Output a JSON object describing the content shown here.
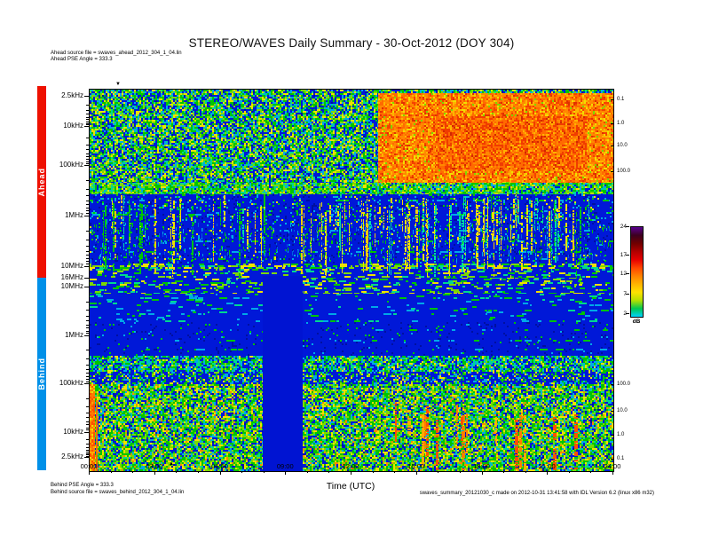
{
  "title": "STEREO/WAVES Daily Summary - 30-Oct-2012 (DOY 304)",
  "header_notes": {
    "ahead_source": "Ahead source file = swaves_ahead_2012_304_1_04.lin",
    "ahead_pse": "Ahead PSE Angle = 333.3"
  },
  "footer_notes": {
    "behind_pse": "Behind PSE Angle = 333.3",
    "behind_source": "Behind source file = swaves_behind_2012_304_1_04.lin",
    "credit": "swaves_summary_20121030_c made on 2012-10-31 13:41:58 with IDL Version 6.2 (linux x86 m32)"
  },
  "panels": {
    "ahead": {
      "label": "Ahead",
      "color": "#ee1000"
    },
    "behind": {
      "label": "Behind",
      "color": "#0090e8"
    }
  },
  "y_axis": {
    "labels": [
      "2.5kHz",
      "10kHz",
      "100kHz",
      "1MHz",
      "10MHz",
      "16MHz",
      "10MHz",
      "1MHz",
      "100kHz",
      "10kHz",
      "2.5kHz"
    ]
  },
  "right_axis": {
    "labels": [
      "0.1",
      "1.0",
      "10.0",
      "100.0",
      "100.0",
      "10.0",
      "1.0",
      "0.1"
    ]
  },
  "x_axis": {
    "label": "Time (UTC)",
    "ticks": [
      "00:00",
      "03:00",
      "06:00",
      "09:00",
      "12:00",
      "15:00",
      "18:00",
      "21:00",
      "24:00"
    ]
  },
  "colorbar": {
    "ticks": [
      "24",
      "17",
      "12",
      "7",
      "2"
    ],
    "unit": "dB",
    "colors_top_to_bottom": [
      "#5a0090",
      "#3c0020",
      "#700000",
      "#b00000",
      "#e60000",
      "#ff4600",
      "#ff8200",
      "#ffb400",
      "#ffe100",
      "#b4e000",
      "#00c850",
      "#00d2ff"
    ]
  },
  "icons": {
    "pse_marker_down": "▼",
    "pse_marker_up": "▲"
  },
  "colors": {
    "quiet_background": "#0018d8",
    "intense_emission": "#ff7800",
    "data_gap_fill": "#0014d2"
  },
  "chart_data": {
    "type": "heatmap",
    "title": "STEREO/WAVES Daily Summary - 30-Oct-2012 (DOY 304)",
    "xlabel": "Time (UTC)",
    "x_range_hours": [
      0,
      24
    ],
    "x_tick_hours": [
      0,
      3,
      6,
      9,
      12,
      15,
      18,
      21,
      24
    ],
    "value_unit": "dB",
    "value_ticks": [
      24,
      17,
      12,
      7,
      2
    ],
    "legend_position": "right colorbar",
    "panels": [
      {
        "name": "Ahead",
        "freq_axis_top_to_bottom": [
          "2.5kHz",
          "10kHz",
          "100kHz",
          "1MHz",
          "10MHz",
          "16MHz"
        ],
        "right_axis_ticks": [
          0.1,
          1.0,
          10.0,
          100.0
        ],
        "features": [
          {
            "feature": "broadband green/yellow speckle noise",
            "freq": "2.5kHz-100kHz",
            "time_hours": [
              0,
              13
            ],
            "level_dB": "5-12"
          },
          {
            "feature": "intense continuous emission (orange/red blob)",
            "freq": "2.5kHz-100kHz",
            "time_hours": [
              13,
              24
            ],
            "level_dB": "15-24"
          },
          {
            "feature": "green transition band under low-freq noise",
            "freq": "~100kHz",
            "time_hours": [
              0,
              24
            ],
            "level_dB": "7-10"
          },
          {
            "feature": "many vertical type III burst streaks",
            "freq": "100kHz-10MHz",
            "time_hours": [
              2,
              23
            ],
            "level_dB": "8-15"
          },
          {
            "feature": "quiet blue background",
            "freq": "100kHz-10MHz",
            "time_hours": [
              0,
              24
            ],
            "level_dB": "2-4"
          },
          {
            "feature": "banded striped emission",
            "freq": "10MHz-16MHz",
            "time_hours": [
              0,
              24
            ],
            "level_dB": "6-12"
          }
        ]
      },
      {
        "name": "Behind",
        "freq_axis_top_to_bottom": [
          "16MHz",
          "10MHz",
          "1MHz",
          "100kHz",
          "10kHz",
          "2.5kHz"
        ],
        "right_axis_ticks": [
          100.0,
          10.0,
          1.0,
          0.1
        ],
        "features": [
          {
            "feature": "banded striped emission",
            "freq": "10MHz-16MHz",
            "time_hours": [
              0,
              24
            ],
            "level_dB": "6-12"
          },
          {
            "feature": "quiet blue background",
            "freq": "1MHz-10MHz",
            "time_hours": [
              0,
              24
            ],
            "level_dB": "2-4"
          },
          {
            "feature": "narrowband green line emission",
            "freq": "~150kHz",
            "time_hours": [
              0,
              24
            ],
            "level_dB": "7-10"
          },
          {
            "feature": "dense broadband speckle",
            "freq": "2.5kHz-100kHz",
            "time_hours": [
              0,
              24
            ],
            "level_dB": "6-14"
          },
          {
            "feature": "orange burst streaks",
            "freq": "2.5kHz-30kHz",
            "time_hours": [
              13.5,
              24
            ],
            "level_dB": "15-20"
          },
          {
            "feature": "data gap (solid blue column, all frequencies)",
            "freq": "all",
            "time_hours": [
              8.0,
              9.8
            ],
            "level_dB": "none"
          }
        ]
      }
    ]
  }
}
